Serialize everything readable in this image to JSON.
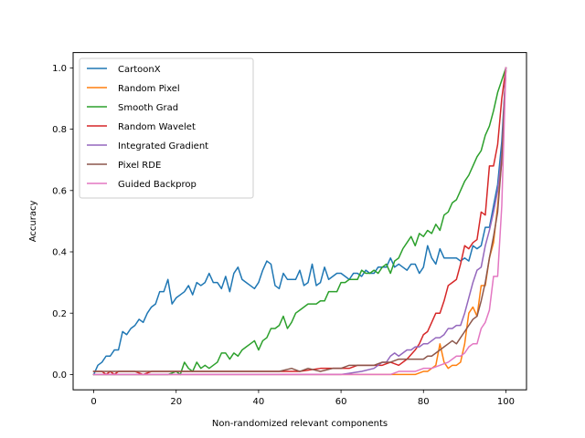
{
  "chart_data": {
    "type": "line",
    "title": "",
    "xlabel": "Non-randomized relevant components",
    "ylabel": "Accuracy",
    "xlim": [
      -5,
      105
    ],
    "ylim": [
      -0.05,
      1.05
    ],
    "xticks": [
      0,
      20,
      40,
      60,
      80,
      100
    ],
    "yticks": [
      0.0,
      0.2,
      0.4,
      0.6,
      0.8,
      1.0
    ],
    "xtick_labels": [
      "0",
      "20",
      "40",
      "60",
      "80",
      "100"
    ],
    "ytick_labels": [
      "0.0",
      "0.2",
      "0.4",
      "0.6",
      "0.8",
      "1.0"
    ],
    "grid": false,
    "legend_position": "top-left",
    "series": [
      {
        "name": "CartoonX",
        "color": "#1f77b4",
        "x": [
          0,
          1,
          2,
          3,
          4,
          5,
          6,
          7,
          8,
          9,
          10,
          11,
          12,
          13,
          14,
          15,
          16,
          17,
          18,
          19,
          20,
          21,
          22,
          23,
          24,
          25,
          26,
          27,
          28,
          29,
          30,
          31,
          32,
          33,
          34,
          35,
          36,
          37,
          38,
          39,
          40,
          41,
          42,
          43,
          44,
          45,
          46,
          47,
          48,
          49,
          50,
          51,
          52,
          53,
          54,
          55,
          56,
          57,
          58,
          59,
          60,
          61,
          62,
          63,
          64,
          65,
          66,
          67,
          68,
          69,
          70,
          71,
          72,
          73,
          74,
          75,
          76,
          77,
          78,
          79,
          80,
          81,
          82,
          83,
          84,
          85,
          86,
          87,
          88,
          89,
          90,
          91,
          92,
          93,
          94,
          95,
          96,
          97,
          98,
          99,
          100
        ],
        "y": [
          0.0,
          0.03,
          0.04,
          0.06,
          0.06,
          0.08,
          0.08,
          0.14,
          0.13,
          0.15,
          0.16,
          0.18,
          0.17,
          0.2,
          0.22,
          0.23,
          0.27,
          0.27,
          0.31,
          0.23,
          0.25,
          0.26,
          0.27,
          0.29,
          0.26,
          0.3,
          0.29,
          0.3,
          0.33,
          0.3,
          0.3,
          0.28,
          0.32,
          0.27,
          0.33,
          0.35,
          0.31,
          0.3,
          0.29,
          0.28,
          0.3,
          0.34,
          0.37,
          0.36,
          0.29,
          0.28,
          0.33,
          0.31,
          0.31,
          0.31,
          0.34,
          0.29,
          0.3,
          0.36,
          0.29,
          0.3,
          0.35,
          0.31,
          0.32,
          0.33,
          0.33,
          0.32,
          0.31,
          0.33,
          0.33,
          0.32,
          0.34,
          0.33,
          0.33,
          0.35,
          0.35,
          0.35,
          0.38,
          0.35,
          0.36,
          0.35,
          0.34,
          0.36,
          0.36,
          0.33,
          0.35,
          0.42,
          0.38,
          0.36,
          0.41,
          0.38,
          0.38,
          0.38,
          0.38,
          0.37,
          0.38,
          0.37,
          0.42,
          0.41,
          0.42,
          0.48,
          0.48,
          0.55,
          0.62,
          0.76,
          0.99
        ]
      },
      {
        "name": "Random Pixel",
        "color": "#ff7f0e",
        "x": [
          0,
          10,
          20,
          30,
          40,
          50,
          55,
          60,
          65,
          70,
          72,
          74,
          76,
          78,
          80,
          81,
          82,
          83,
          84,
          85,
          86,
          87,
          88,
          89,
          90,
          91,
          92,
          93,
          94,
          95,
          96,
          97,
          98,
          99,
          100
        ],
        "y": [
          0.0,
          0.0,
          0.0,
          0.0,
          0.0,
          0.0,
          0.0,
          0.0,
          0.0,
          0.0,
          0.0,
          0.0,
          0.0,
          0.0,
          0.01,
          0.01,
          0.02,
          0.03,
          0.1,
          0.04,
          0.02,
          0.03,
          0.03,
          0.04,
          0.1,
          0.2,
          0.22,
          0.19,
          0.29,
          0.29,
          0.38,
          0.43,
          0.55,
          0.7,
          0.99
        ]
      },
      {
        "name": "Smooth Grad",
        "color": "#2ca02c",
        "x": [
          0,
          2,
          4,
          6,
          8,
          10,
          12,
          14,
          16,
          18,
          20,
          21,
          22,
          23,
          24,
          25,
          26,
          27,
          28,
          29,
          30,
          31,
          32,
          33,
          34,
          35,
          36,
          37,
          38,
          39,
          40,
          41,
          42,
          43,
          44,
          45,
          46,
          47,
          48,
          49,
          50,
          51,
          52,
          53,
          54,
          55,
          56,
          57,
          58,
          59,
          60,
          61,
          62,
          63,
          64,
          65,
          66,
          67,
          68,
          69,
          70,
          71,
          72,
          73,
          74,
          75,
          76,
          77,
          78,
          79,
          80,
          81,
          82,
          83,
          84,
          85,
          86,
          87,
          88,
          89,
          90,
          91,
          92,
          93,
          94,
          95,
          96,
          97,
          98,
          99,
          100
        ],
        "y": [
          0.0,
          0.0,
          0.0,
          0.0,
          0.0,
          0.0,
          0.0,
          0.0,
          0.0,
          0.0,
          0.01,
          0.0,
          0.04,
          0.02,
          0.01,
          0.04,
          0.02,
          0.03,
          0.02,
          0.03,
          0.04,
          0.07,
          0.07,
          0.05,
          0.07,
          0.06,
          0.08,
          0.09,
          0.1,
          0.11,
          0.08,
          0.11,
          0.12,
          0.15,
          0.15,
          0.16,
          0.19,
          0.15,
          0.17,
          0.2,
          0.21,
          0.22,
          0.23,
          0.23,
          0.23,
          0.24,
          0.24,
          0.27,
          0.27,
          0.27,
          0.3,
          0.3,
          0.31,
          0.31,
          0.31,
          0.34,
          0.33,
          0.33,
          0.34,
          0.33,
          0.35,
          0.36,
          0.33,
          0.37,
          0.38,
          0.41,
          0.43,
          0.45,
          0.42,
          0.46,
          0.45,
          0.47,
          0.46,
          0.49,
          0.47,
          0.52,
          0.53,
          0.56,
          0.57,
          0.6,
          0.63,
          0.65,
          0.68,
          0.71,
          0.73,
          0.78,
          0.81,
          0.86,
          0.92,
          0.96,
          1.0
        ]
      },
      {
        "name": "Random Wavelet",
        "color": "#d62728",
        "x": [
          0,
          2,
          3,
          4,
          5,
          6,
          8,
          10,
          12,
          14,
          16,
          20,
          30,
          40,
          45,
          50,
          55,
          60,
          62,
          64,
          66,
          68,
          70,
          72,
          74,
          76,
          78,
          79,
          80,
          81,
          82,
          83,
          84,
          85,
          86,
          87,
          88,
          89,
          90,
          91,
          92,
          93,
          94,
          95,
          96,
          97,
          98,
          99,
          100
        ],
        "y": [
          0.01,
          0.01,
          0.0,
          0.01,
          0.0,
          0.01,
          0.01,
          0.01,
          0.0,
          0.01,
          0.01,
          0.01,
          0.01,
          0.01,
          0.01,
          0.01,
          0.02,
          0.02,
          0.02,
          0.03,
          0.03,
          0.03,
          0.03,
          0.04,
          0.03,
          0.05,
          0.08,
          0.1,
          0.13,
          0.14,
          0.17,
          0.2,
          0.2,
          0.24,
          0.29,
          0.3,
          0.31,
          0.36,
          0.42,
          0.41,
          0.43,
          0.44,
          0.53,
          0.52,
          0.68,
          0.68,
          0.75,
          0.9,
          1.0
        ]
      },
      {
        "name": "Integrated Gradient",
        "color": "#9467bd",
        "x": [
          0,
          10,
          20,
          30,
          40,
          50,
          55,
          60,
          65,
          68,
          70,
          71,
          72,
          73,
          74,
          75,
          76,
          77,
          78,
          79,
          80,
          81,
          82,
          83,
          84,
          85,
          86,
          87,
          88,
          89,
          90,
          91,
          92,
          93,
          94,
          95,
          96,
          97,
          98,
          99,
          100
        ],
        "y": [
          0.0,
          0.0,
          0.0,
          0.0,
          0.0,
          0.0,
          0.0,
          0.0,
          0.01,
          0.02,
          0.04,
          0.04,
          0.06,
          0.07,
          0.06,
          0.07,
          0.08,
          0.08,
          0.09,
          0.09,
          0.1,
          0.1,
          0.11,
          0.12,
          0.12,
          0.13,
          0.15,
          0.15,
          0.16,
          0.16,
          0.2,
          0.25,
          0.3,
          0.34,
          0.35,
          0.42,
          0.47,
          0.53,
          0.6,
          0.72,
          1.0
        ]
      },
      {
        "name": "Pixel RDE",
        "color": "#8c564b",
        "x": [
          0,
          10,
          20,
          30,
          40,
          45,
          48,
          50,
          52,
          55,
          58,
          60,
          62,
          64,
          66,
          68,
          70,
          72,
          74,
          76,
          78,
          80,
          81,
          82,
          83,
          84,
          85,
          86,
          87,
          88,
          89,
          90,
          91,
          92,
          93,
          94,
          95,
          96,
          97,
          98,
          99,
          100
        ],
        "y": [
          0.01,
          0.01,
          0.01,
          0.01,
          0.01,
          0.01,
          0.02,
          0.01,
          0.02,
          0.01,
          0.02,
          0.02,
          0.03,
          0.03,
          0.03,
          0.03,
          0.04,
          0.04,
          0.05,
          0.05,
          0.05,
          0.05,
          0.06,
          0.06,
          0.07,
          0.08,
          0.09,
          0.1,
          0.11,
          0.1,
          0.12,
          0.14,
          0.16,
          0.18,
          0.19,
          0.24,
          0.3,
          0.38,
          0.45,
          0.53,
          0.7,
          1.0
        ]
      },
      {
        "name": "Guided Backprop",
        "color": "#e377c2",
        "x": [
          0,
          10,
          20,
          30,
          40,
          50,
          60,
          64,
          66,
          68,
          70,
          72,
          74,
          76,
          78,
          80,
          82,
          84,
          86,
          88,
          89,
          90,
          91,
          92,
          93,
          94,
          95,
          96,
          97,
          98,
          99,
          100
        ],
        "y": [
          0.0,
          0.0,
          0.0,
          0.0,
          0.0,
          0.0,
          0.0,
          0.0,
          0.0,
          0.0,
          0.0,
          0.0,
          0.01,
          0.01,
          0.01,
          0.02,
          0.02,
          0.03,
          0.04,
          0.06,
          0.06,
          0.07,
          0.09,
          0.1,
          0.1,
          0.15,
          0.17,
          0.21,
          0.32,
          0.32,
          0.55,
          1.0
        ]
      }
    ]
  }
}
